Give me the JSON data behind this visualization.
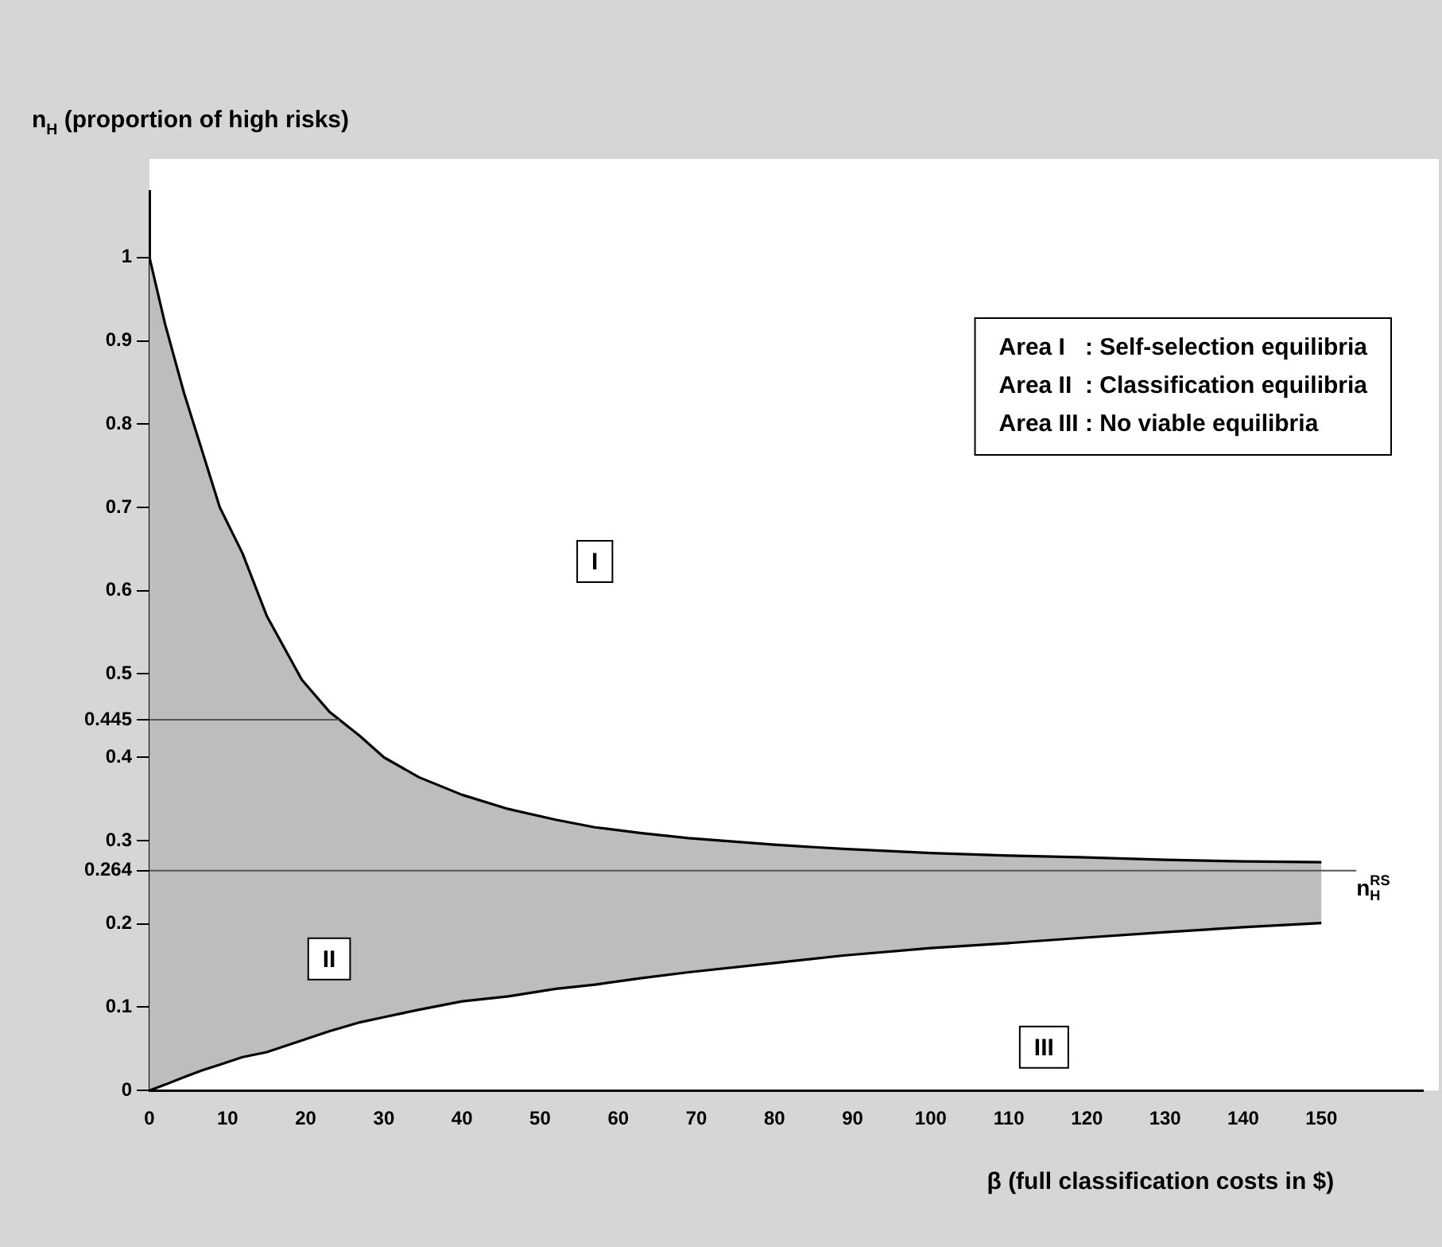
{
  "chart_data": {
    "type": "line",
    "xlabel": "β (full classification costs in $)",
    "ylabel": "n$_{H}$ (proportion of high risks)",
    "xlim": [
      0,
      163
    ],
    "ylim": [
      0,
      1.08
    ],
    "xticks": [
      0,
      10,
      20,
      30,
      40,
      50,
      60,
      70,
      80,
      90,
      100,
      110,
      120,
      130,
      140,
      150
    ],
    "yticks": [
      0,
      0.1,
      0.2,
      0.264,
      0.3,
      0.4,
      0.445,
      0.5,
      0.6,
      0.7,
      0.8,
      0.9,
      1
    ],
    "grid": false,
    "legend": false,
    "marker": "none",
    "line_style": "solid",
    "series": [
      {
        "color": "#000000",
        "x": [
          0,
          2,
          4.4,
          6.7,
          9,
          11.9,
          15,
          19.5,
          23,
          27,
          30,
          34.5,
          40,
          45.9,
          52,
          57,
          63,
          69,
          80,
          88.8,
          100,
          110,
          119,
          130,
          140,
          150
        ],
        "values": [
          1,
          0.92,
          0.838,
          0.769,
          0.7,
          0.645,
          0.57,
          0.493,
          0.455,
          0.425,
          0.4,
          0.376,
          0.355,
          0.338,
          0.325,
          0.316,
          0.309,
          0.303,
          0.295,
          0.29,
          0.285,
          0.282,
          0.28,
          0.277,
          0.275,
          0.274
        ],
        "lower": [
          0,
          0.007,
          0.016,
          0.024,
          0.031,
          0.04,
          0.046,
          0.06,
          0.071,
          0.082,
          0.088,
          0.097,
          0.107,
          0.113,
          0.122,
          0.127,
          0.135,
          0.142,
          0.153,
          0.162,
          0.171,
          0.177,
          0.183,
          0.19,
          0.196,
          0.201
        ],
        "upper": [
          1,
          0.92,
          0.838,
          0.769,
          0.7,
          0.645,
          0.57,
          0.493,
          0.455,
          0.425,
          0.4,
          0.376,
          0.355,
          0.338,
          0.325,
          0.316,
          0.309,
          0.303,
          0.295,
          0.29,
          0.285,
          0.282,
          0.28,
          0.277,
          0.275,
          0.274
        ]
      },
      {
        "color": "#000000",
        "x": [
          0,
          2,
          4.4,
          6.7,
          9,
          11.9,
          15,
          19.5,
          23,
          27,
          30,
          34.5,
          40,
          45.9,
          52,
          57,
          63,
          69,
          80,
          88.8,
          100,
          110,
          119,
          130,
          140,
          150
        ],
        "values": [
          0,
          0.007,
          0.016,
          0.024,
          0.031,
          0.04,
          0.046,
          0.06,
          0.071,
          0.082,
          0.088,
          0.097,
          0.107,
          0.113,
          0.122,
          0.127,
          0.135,
          0.142,
          0.153,
          0.162,
          0.171,
          0.177,
          0.183,
          0.19,
          0.196,
          0.201
        ]
      }
    ],
    "ref_lines": [
      {
        "axis": "y",
        "value": 0.445,
        "color": "#555555"
      },
      {
        "axis": "y",
        "value": 0.264,
        "color": "#555555",
        "label": "n$_{H}$$^{RS}$"
      }
    ],
    "annotations": [
      {
        "text": "I",
        "x": 57,
        "y": 0.635
      },
      {
        "text": "II",
        "x": 23,
        "y": 0.158
      },
      {
        "text": "III",
        "x": 114.5,
        "y": 0.052
      },
      "Area I   : Self-selection equilibria",
      "Area II  : Classification equilibria",
      "Area III : No viable equilibria"
    ]
  }
}
